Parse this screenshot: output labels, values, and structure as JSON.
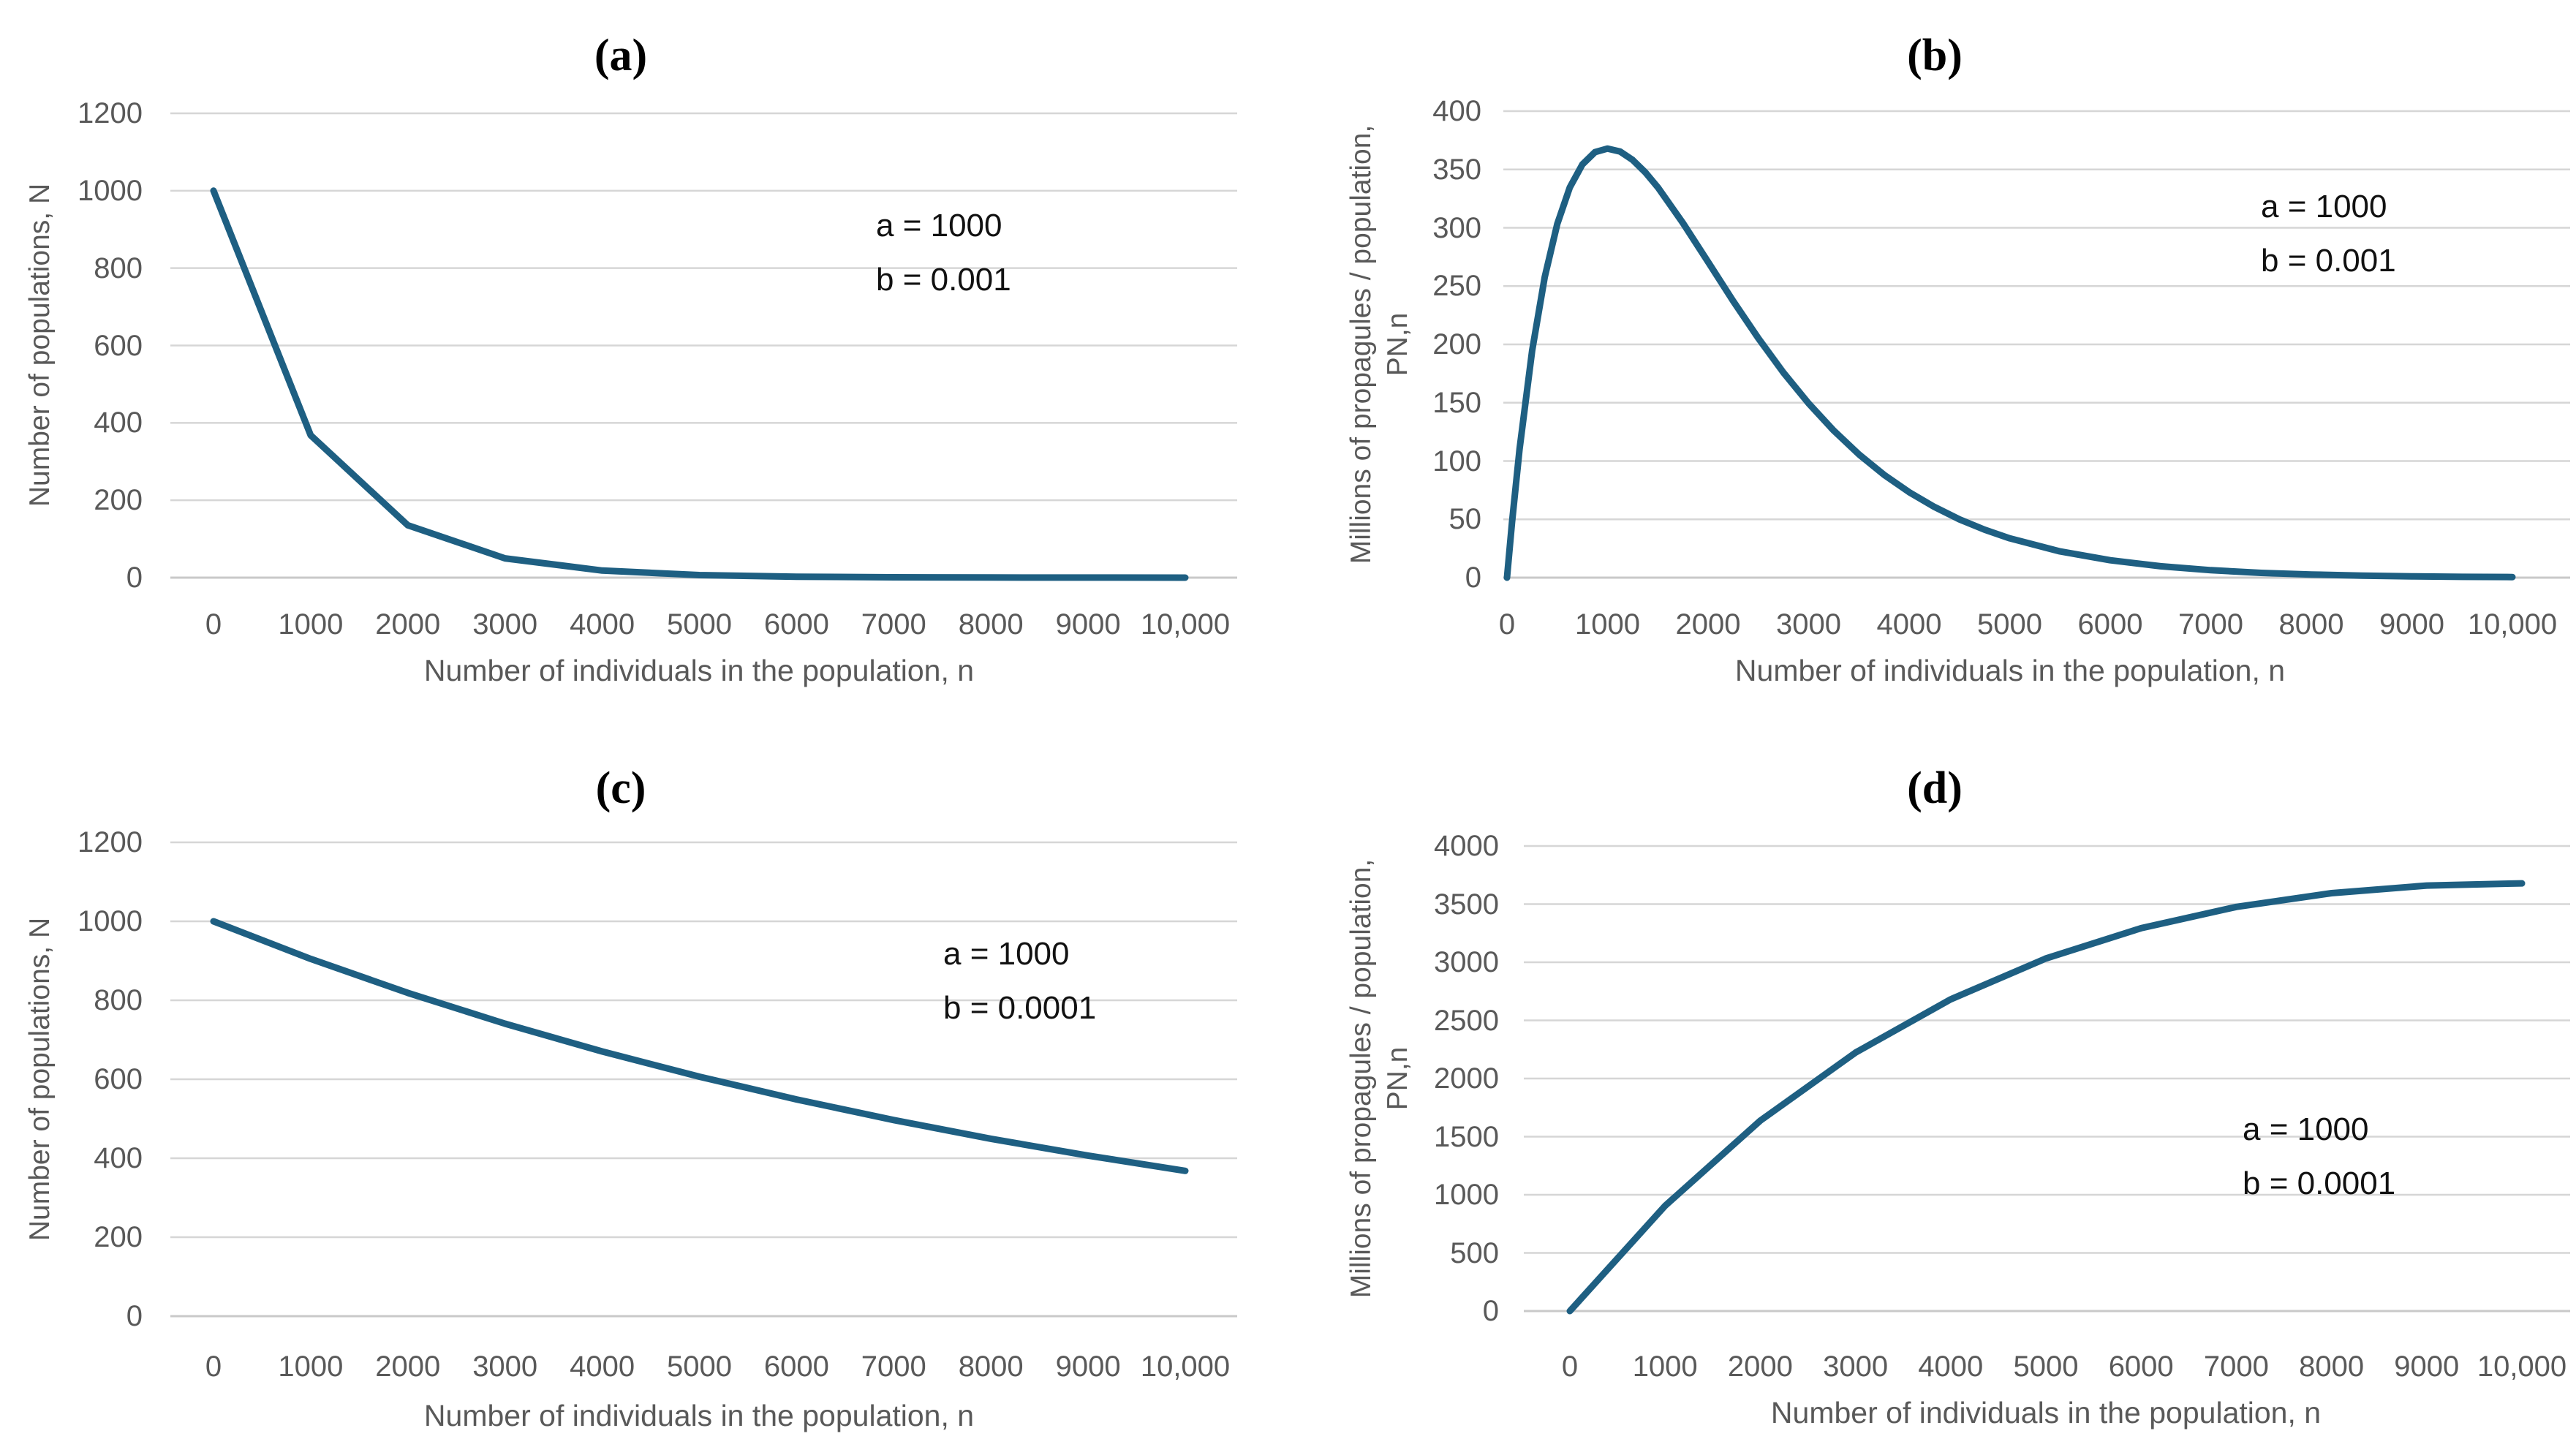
{
  "figure_name": "Four-panel line figure: populations and propagules vs population size",
  "colors": {
    "curve": "#1e5f82",
    "gridline": "#d6d6d6",
    "axis_line": "#c9c9c9",
    "tick_label": "#595959",
    "axis_title": "#595959",
    "annotation": "#111111",
    "panel_title": "#000000"
  },
  "panels": [
    {
      "id": "a",
      "title": "(a)",
      "y_ticks": [
        "1200",
        "1000",
        "800",
        "600",
        "400",
        "200",
        "0"
      ],
      "x_ticks": [
        "0",
        "1000",
        "2000",
        "3000",
        "4000",
        "5000",
        "6000",
        "7000",
        "8000",
        "9000",
        "10,000"
      ],
      "x_axis_title": "Number of individuals in the population, n",
      "y_axis_title_lines": [
        "Number of populations, N"
      ],
      "annotation_lines": [
        "a = 1000",
        "b = 0.001"
      ]
    },
    {
      "id": "b",
      "title": "(b)",
      "y_ticks": [
        "400",
        "350",
        "300",
        "250",
        "200",
        "150",
        "100",
        "50",
        "0"
      ],
      "x_ticks": [
        "0",
        "1000",
        "2000",
        "3000",
        "4000",
        "5000",
        "6000",
        "7000",
        "8000",
        "9000",
        "10,000"
      ],
      "x_axis_title": "Number of individuals in the population, n",
      "y_axis_title_lines": [
        "Millions of propagules / population,",
        "PN,n"
      ],
      "annotation_lines": [
        "a = 1000",
        "b = 0.001"
      ]
    },
    {
      "id": "c",
      "title": "(c)",
      "y_ticks": [
        "1200",
        "1000",
        "800",
        "600",
        "400",
        "200",
        "0"
      ],
      "x_ticks": [
        "0",
        "1000",
        "2000",
        "3000",
        "4000",
        "5000",
        "6000",
        "7000",
        "8000",
        "9000",
        "10,000"
      ],
      "x_axis_title": "Number of individuals in the population, n",
      "y_axis_title_lines": [
        "Number of populations, N"
      ],
      "annotation_lines": [
        "a = 1000",
        "b = 0.0001"
      ]
    },
    {
      "id": "d",
      "title": "(d)",
      "y_ticks": [
        "4000",
        "3500",
        "3000",
        "2500",
        "2000",
        "1500",
        "1000",
        "500",
        "0"
      ],
      "x_ticks": [
        "0",
        "1000",
        "2000",
        "3000",
        "4000",
        "5000",
        "6000",
        "7000",
        "8000",
        "9000",
        "10,000"
      ],
      "x_axis_title": "Number of individuals in the population, n",
      "y_axis_title_lines": [
        "Millions of propagules / population,",
        "PN,n"
      ],
      "annotation_lines": [
        "a = 1000",
        "b = 0.0001"
      ]
    }
  ],
  "chart_data": [
    {
      "id": "a",
      "type": "line",
      "title": "(a)",
      "xlabel": "Number of individuals in the population, n",
      "ylabel": "Number of populations, N",
      "xlim": [
        0,
        10000
      ],
      "ylim": [
        0,
        1200
      ],
      "x_tick_step": 1000,
      "y_tick_step": 200,
      "grid": "horizontal",
      "legend": "none",
      "params_shown": {
        "a": 1000,
        "b": 0.001
      },
      "x": [
        0,
        1000,
        2000,
        3000,
        4000,
        5000,
        6000,
        7000,
        8000,
        9000,
        10000
      ],
      "y": [
        1000,
        367.9,
        135.3,
        49.8,
        18.3,
        6.7,
        2.5,
        0.9,
        0.3,
        0.1,
        0.05
      ]
    },
    {
      "id": "b",
      "type": "line",
      "title": "(b)",
      "xlabel": "Number of individuals in the population, n",
      "ylabel": "Millions of propagules / population, PN,n",
      "xlim": [
        0,
        10000
      ],
      "ylim": [
        0,
        400
      ],
      "x_tick_step": 1000,
      "y_tick_step": 50,
      "grid": "horizontal",
      "legend": "none",
      "params_shown": {
        "a": 1000,
        "b": 0.001
      },
      "x": [
        0,
        50,
        125,
        250,
        375,
        500,
        625,
        750,
        875,
        1000,
        1125,
        1250,
        1375,
        1500,
        1750,
        2000,
        2250,
        2500,
        2750,
        3000,
        3250,
        3500,
        3750,
        4000,
        4250,
        4500,
        4750,
        5000,
        5500,
        6000,
        6500,
        7000,
        7500,
        8000,
        8500,
        9000,
        9500,
        10000
      ],
      "y": [
        0,
        47.6,
        110.3,
        194.7,
        257.7,
        303.3,
        334.6,
        354.3,
        364.8,
        367.9,
        365.3,
        358.1,
        347.6,
        334.7,
        304.1,
        270.7,
        237.1,
        205.2,
        175.8,
        149.4,
        126.1,
        105.7,
        88.2,
        73.3,
        60.7,
        50.0,
        41.1,
        33.7,
        22.5,
        14.9,
        9.8,
        6.4,
        4.1,
        2.7,
        1.7,
        1.1,
        0.7,
        0.5
      ]
    },
    {
      "id": "c",
      "type": "line",
      "title": "(c)",
      "xlabel": "Number of individuals in the population, n",
      "ylabel": "Number of populations, N",
      "xlim": [
        0,
        10000
      ],
      "ylim": [
        0,
        1200
      ],
      "x_tick_step": 1000,
      "y_tick_step": 200,
      "grid": "horizontal",
      "legend": "none",
      "params_shown": {
        "a": 1000,
        "b": 0.0001
      },
      "x": [
        0,
        1000,
        2000,
        3000,
        4000,
        5000,
        6000,
        7000,
        8000,
        9000,
        10000
      ],
      "y": [
        1000,
        904.8,
        818.7,
        740.8,
        670.3,
        606.5,
        548.8,
        496.6,
        449.3,
        406.6,
        367.9
      ]
    },
    {
      "id": "d",
      "type": "line",
      "title": "(d)",
      "xlabel": "Number of individuals in the population, n",
      "ylabel": "Millions of propagules / population, PN,n",
      "xlim": [
        0,
        10000
      ],
      "ylim": [
        0,
        4000
      ],
      "x_tick_step": 1000,
      "y_tick_step": 500,
      "grid": "horizontal",
      "legend": "none",
      "params_shown": {
        "a": 1000,
        "b": 0.0001
      },
      "x": [
        0,
        1000,
        2000,
        3000,
        4000,
        5000,
        6000,
        7000,
        8000,
        9000,
        10000
      ],
      "y": [
        0,
        904.8,
        1637.5,
        2222.5,
        2681.3,
        3032.7,
        3292.9,
        3476.0,
        3594.6,
        3659.7,
        3678.8
      ]
    }
  ]
}
